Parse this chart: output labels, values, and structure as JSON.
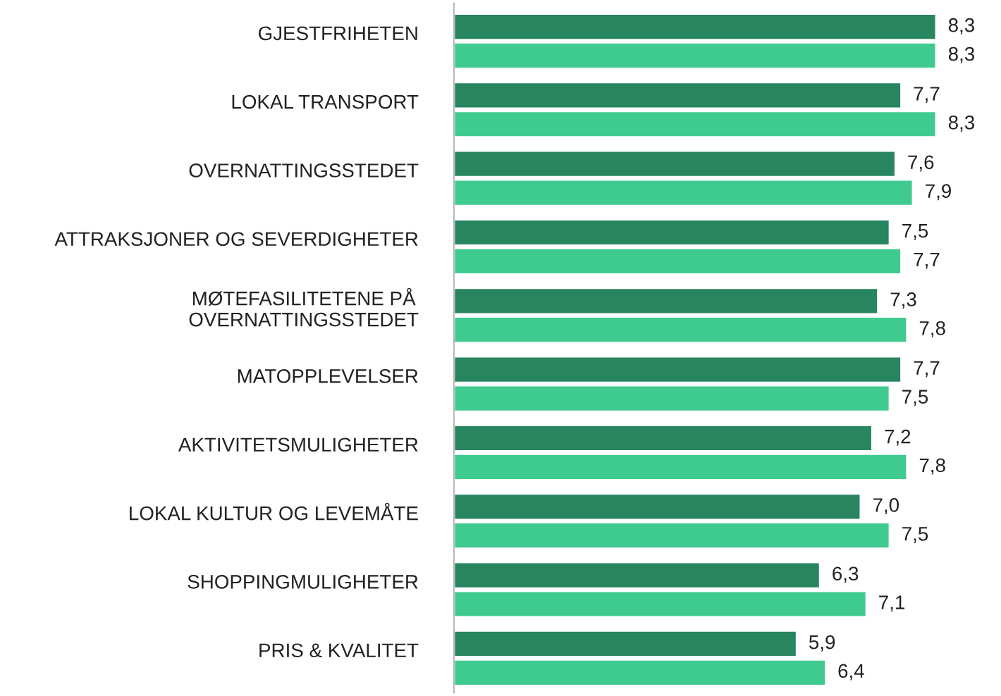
{
  "chart_data": {
    "type": "bar",
    "orientation": "horizontal",
    "categories": [
      "GJESTFRIHETEN",
      "LOKAL TRANSPORT",
      "OVERNATTINGSSTEDET",
      "ATTRAKSJONER OG SEVERDIGHETER",
      "MØTEFASILITETENE PÅ\nOVERNATTINGSSTEDET",
      "MATOPPLEVELSER",
      "AKTIVITETSMULIGHETER",
      "LOKAL KULTUR OG LEVEMÅTE",
      "SHOPPINGMULIGHETER",
      "PRIS & KVALITET"
    ],
    "series": [
      {
        "color": "#27855f",
        "values": [
          8.3,
          7.7,
          7.6,
          7.5,
          7.3,
          7.7,
          7.2,
          7.0,
          6.3,
          5.9
        ],
        "value_labels": [
          "8,3",
          "7,7",
          "7,6",
          "7,5",
          "7,3",
          "7,7",
          "7,2",
          "7,0",
          "6,3",
          "5,9"
        ]
      },
      {
        "color": "#3fcb8f",
        "values": [
          8.3,
          8.3,
          7.9,
          7.7,
          7.8,
          7.5,
          7.8,
          7.5,
          7.1,
          6.4
        ],
        "value_labels": [
          "8,3",
          "8,3",
          "7,9",
          "7,7",
          "7,8",
          "7,5",
          "7,8",
          "7,5",
          "7,1",
          "6,4"
        ]
      }
    ],
    "tick_labels": "y",
    "grid": false,
    "legend": false
  }
}
